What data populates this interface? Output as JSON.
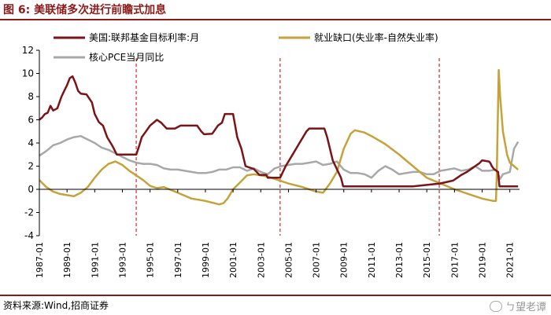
{
  "figure_label": "图 6:",
  "figure_title": "美联储多次进行前瞻式加息",
  "source": "资料来源:Wind,招商证券",
  "watermark": "ㄅ望老谭",
  "colors": {
    "accent": "#8b1a1a",
    "fed_rate": "#7a1416",
    "employment_gap": "#c6a23a",
    "core_pce": "#a8a8a8",
    "marker": "#cc0000"
  },
  "chart_data": {
    "type": "line",
    "title": "美联储多次进行前瞻式加息",
    "ylim": [
      -4,
      12
    ],
    "yticks": [
      -4,
      -2,
      0,
      2,
      4,
      6,
      8,
      10,
      12
    ],
    "xlim": [
      1987.0,
      2021.7
    ],
    "xticks": [
      "1987-01",
      "1989-01",
      "1991-01",
      "1993-01",
      "1995-01",
      "1997-01",
      "1999-01",
      "2001-01",
      "2003-01",
      "2005-01",
      "2007-01",
      "2009-01",
      "2011-01",
      "2013-01",
      "2015-01",
      "2017-01",
      "2019-01",
      "2021-01"
    ],
    "markers": [
      1994.0,
      2004.4,
      2015.9
    ],
    "series": [
      {
        "name": "美国:联邦基金目标利率:月",
        "color": "#7a1416",
        "width": 2.5,
        "x": [
          1987.0,
          1987.2,
          1987.4,
          1987.6,
          1987.8,
          1988.0,
          1988.3,
          1988.6,
          1988.8,
          1989.0,
          1989.2,
          1989.4,
          1989.6,
          1989.8,
          1990.0,
          1990.4,
          1990.8,
          1991.0,
          1991.3,
          1991.6,
          1991.9,
          1992.3,
          1992.6,
          1992.9,
          1993.5,
          1994.0,
          1994.2,
          1994.4,
          1994.7,
          1995.0,
          1995.5,
          1995.8,
          1996.2,
          1996.8,
          1997.2,
          1997.8,
          1998.4,
          1998.7,
          1998.9,
          1999.5,
          1999.9,
          2000.2,
          2000.4,
          2001.0,
          2001.3,
          2001.6,
          2001.9,
          2002.5,
          2002.9,
          2003.4,
          2003.5,
          2004.4,
          2004.8,
          2005.3,
          2005.8,
          2006.3,
          2006.5,
          2007.0,
          2007.6,
          2007.8,
          2008.0,
          2008.2,
          2008.4,
          2008.8,
          2008.96,
          2010.0,
          2012.0,
          2014.0,
          2015.95,
          2016.9,
          2017.2,
          2017.5,
          2017.9,
          2018.2,
          2018.5,
          2018.8,
          2019.0,
          2019.5,
          2019.6,
          2019.7,
          2019.85,
          2020.15,
          2020.25,
          2021.0,
          2021.6
        ],
        "y": [
          6.0,
          6.2,
          6.5,
          6.6,
          7.2,
          6.8,
          7.0,
          8.0,
          8.5,
          9.0,
          9.6,
          9.75,
          9.2,
          8.5,
          8.25,
          8.2,
          7.5,
          6.5,
          5.8,
          5.5,
          4.5,
          3.7,
          3.0,
          3.0,
          3.0,
          3.0,
          3.7,
          4.5,
          5.0,
          5.5,
          6.0,
          5.75,
          5.25,
          5.25,
          5.5,
          5.5,
          5.5,
          5.0,
          4.75,
          4.8,
          5.5,
          5.75,
          6.5,
          6.5,
          4.5,
          3.5,
          2.0,
          1.75,
          1.25,
          1.25,
          1.0,
          1.0,
          2.0,
          3.0,
          4.0,
          5.0,
          5.25,
          5.25,
          5.25,
          4.5,
          3.5,
          2.5,
          2.0,
          1.0,
          0.25,
          0.25,
          0.25,
          0.25,
          0.5,
          0.75,
          1.0,
          1.25,
          1.5,
          1.75,
          2.0,
          2.25,
          2.5,
          2.4,
          2.25,
          2.0,
          1.75,
          1.5,
          0.25,
          0.25,
          0.25
        ]
      },
      {
        "name": "就业缺口(失业率-自然失业率)",
        "color": "#c6a23a",
        "width": 2.5,
        "x": [
          1987.0,
          1987.5,
          1988.0,
          1988.5,
          1989.0,
          1989.5,
          1990.0,
          1990.5,
          1991.0,
          1991.5,
          1992.0,
          1992.5,
          1993.0,
          1993.5,
          1994.0,
          1994.5,
          1995.0,
          1995.5,
          1996.0,
          1997.0,
          1998.0,
          1999.0,
          2000.0,
          2000.3,
          2000.6,
          2001.0,
          2001.5,
          2002.0,
          2002.5,
          2003.0,
          2003.5,
          2004.0,
          2005.0,
          2006.0,
          2007.0,
          2007.5,
          2008.0,
          2008.5,
          2009.0,
          2009.5,
          2009.8,
          2010.5,
          2011.0,
          2012.0,
          2013.0,
          2014.0,
          2015.0,
          2016.0,
          2017.0,
          2018.0,
          2019.0,
          2019.8,
          2020.0,
          2020.05,
          2020.2,
          2020.3,
          2020.5,
          2020.8,
          2021.0,
          2021.3,
          2021.6
        ],
        "y": [
          0.8,
          0.2,
          -0.2,
          -0.4,
          -0.5,
          -0.6,
          -0.3,
          0.2,
          1.0,
          1.7,
          2.2,
          2.4,
          2.1,
          1.6,
          1.2,
          0.8,
          0.3,
          0.1,
          0.2,
          -0.3,
          -0.8,
          -1.0,
          -1.3,
          -1.2,
          -0.8,
          0.0,
          0.6,
          1.2,
          1.3,
          1.2,
          1.1,
          0.9,
          0.5,
          0.2,
          -0.2,
          -0.3,
          0.5,
          1.5,
          3.5,
          4.8,
          5.1,
          4.9,
          4.6,
          3.9,
          3.0,
          2.0,
          1.0,
          0.5,
          0.0,
          -0.4,
          -0.8,
          -1.0,
          -1.0,
          1.0,
          10.3,
          8.0,
          5.0,
          3.0,
          2.3,
          2.0,
          1.7
        ]
      },
      {
        "name": "核心PCE当月同比",
        "color": "#a8a8a8",
        "width": 2.5,
        "x": [
          1987.0,
          1987.5,
          1988.0,
          1988.5,
          1989.0,
          1989.5,
          1990.0,
          1990.5,
          1991.0,
          1991.5,
          1992.0,
          1992.5,
          1993.0,
          1993.5,
          1994.0,
          1994.5,
          1995.0,
          1995.5,
          1996.0,
          1996.5,
          1997.0,
          1997.5,
          1998.0,
          1998.5,
          1999.0,
          1999.5,
          2000.0,
          2000.5,
          2001.0,
          2001.5,
          2002.0,
          2002.5,
          2003.0,
          2003.5,
          2004.0,
          2004.5,
          2005.0,
          2005.5,
          2006.0,
          2006.5,
          2007.0,
          2007.5,
          2008.0,
          2008.5,
          2009.0,
          2009.5,
          2010.0,
          2010.5,
          2011.0,
          2011.5,
          2012.0,
          2012.5,
          2013.0,
          2013.5,
          2014.0,
          2014.5,
          2015.0,
          2015.5,
          2016.0,
          2016.5,
          2017.0,
          2017.5,
          2018.0,
          2018.5,
          2019.0,
          2019.5,
          2020.0,
          2020.3,
          2020.5,
          2021.0,
          2021.3,
          2021.6
        ],
        "y": [
          2.9,
          3.3,
          3.8,
          4.0,
          4.3,
          4.5,
          4.6,
          4.3,
          4.0,
          3.6,
          3.4,
          3.1,
          2.8,
          2.5,
          2.3,
          2.2,
          2.2,
          2.1,
          1.8,
          1.7,
          1.7,
          1.6,
          1.5,
          1.4,
          1.4,
          1.5,
          1.7,
          1.7,
          1.9,
          1.9,
          1.6,
          1.8,
          1.5,
          1.3,
          1.8,
          2.0,
          2.1,
          2.2,
          2.2,
          2.3,
          2.4,
          2.1,
          2.2,
          2.4,
          1.7,
          1.4,
          1.4,
          1.3,
          1.0,
          1.6,
          2.0,
          1.7,
          1.3,
          1.4,
          1.5,
          1.5,
          1.3,
          1.3,
          1.6,
          1.7,
          1.8,
          1.6,
          1.7,
          2.0,
          1.6,
          1.6,
          1.7,
          0.9,
          1.3,
          1.5,
          3.5,
          4.1
        ]
      }
    ]
  }
}
